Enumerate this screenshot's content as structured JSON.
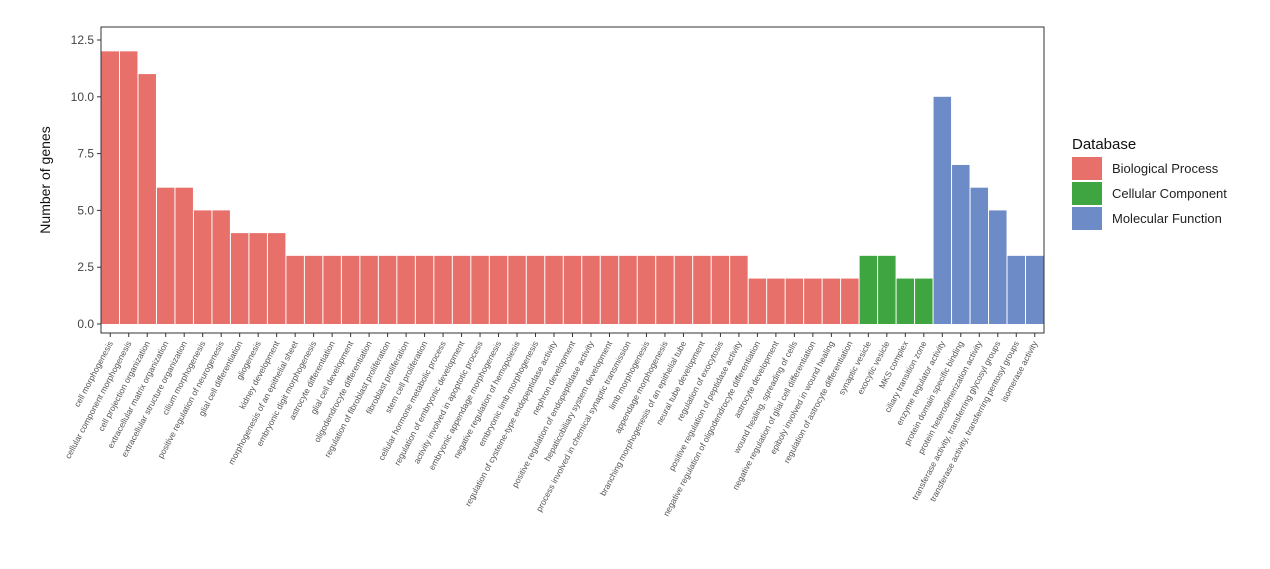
{
  "chart_data": {
    "type": "bar",
    "ylabel": "Number of genes",
    "xlabel": "",
    "ylim": [
      0,
      12.5
    ],
    "yticks": [
      "0.0",
      "2.5",
      "5.0",
      "7.5",
      "10.0",
      "12.5"
    ],
    "legend": {
      "title": "Database",
      "position": "right",
      "entries": [
        {
          "name": "Biological Process",
          "color": "#e8706a"
        },
        {
          "name": "Cellular Component",
          "color": "#3fa540"
        },
        {
          "name": "Molecular Function",
          "color": "#6d8bc6"
        }
      ]
    },
    "categories": [
      "cell morphogenesis",
      "cellular component morphogenesis",
      "cell projection organization",
      "extracellular matrix organization",
      "extracellular structure organization",
      "cilium morphogenesis",
      "positive regulation of neurogenesis",
      "glial cell differentiation",
      "gliogenesis",
      "kidney development",
      "morphogenesis of an epithelial sheet",
      "embryonic digit morphogenesis",
      "astrocyte differentiation",
      "glial cell development",
      "oligodendrocyte differentiation",
      "regulation of fibroblast proliferation",
      "fibroblast proliferation",
      "stem cell proliferation",
      "cellular hormone metabolic process",
      "regulation of embryonic development",
      "activity involved in apoptotic process",
      "embryonic appendage morphogenesis",
      "negative regulation of hemopoiesis",
      "embryonic limb morphogenesis",
      "regulation of cysteine-type endopeptidase activity",
      "nephron development",
      "positive regulation of endopeptidase activity",
      "hepaticobiliary system development",
      "process involved in chemical synaptic transmission",
      "limb morphogenesis",
      "appendage morphogenesis",
      "branching morphogenesis of an epithelial tube",
      "neural tube development",
      "regulation of exocytosis",
      "positive regulation of peptidase activity",
      "negative regulation of oligodendrocyte differentiation",
      "astrocyte development",
      "wound healing, spreading of cells",
      "negative regulation of glial cell differentiation",
      "epiboly involved in wound healing",
      "regulation of astrocyte differentiation",
      "synaptic vesicle",
      "exocytic vesicle",
      "MKS complex",
      "ciliary transition zone",
      "enzyme regulator activity",
      "protein domain specific binding",
      "protein heterodimerization activity",
      "transferase activity, transferring glycosyl groups",
      "transferase activity, transferring pentosyl groups",
      "isomerase activity"
    ],
    "groups": [
      "Biological Process",
      "Biological Process",
      "Biological Process",
      "Biological Process",
      "Biological Process",
      "Biological Process",
      "Biological Process",
      "Biological Process",
      "Biological Process",
      "Biological Process",
      "Biological Process",
      "Biological Process",
      "Biological Process",
      "Biological Process",
      "Biological Process",
      "Biological Process",
      "Biological Process",
      "Biological Process",
      "Biological Process",
      "Biological Process",
      "Biological Process",
      "Biological Process",
      "Biological Process",
      "Biological Process",
      "Biological Process",
      "Biological Process",
      "Biological Process",
      "Biological Process",
      "Biological Process",
      "Biological Process",
      "Biological Process",
      "Biological Process",
      "Biological Process",
      "Biological Process",
      "Biological Process",
      "Biological Process",
      "Biological Process",
      "Biological Process",
      "Biological Process",
      "Biological Process",
      "Biological Process",
      "Cellular Component",
      "Cellular Component",
      "Cellular Component",
      "Cellular Component",
      "Molecular Function",
      "Molecular Function",
      "Molecular Function",
      "Molecular Function",
      "Molecular Function",
      "Molecular Function"
    ],
    "values": [
      12,
      12,
      11,
      6,
      6,
      5,
      5,
      4,
      4,
      4,
      3,
      3,
      3,
      3,
      3,
      3,
      3,
      3,
      3,
      3,
      3,
      3,
      3,
      3,
      3,
      3,
      3,
      3,
      3,
      3,
      3,
      3,
      3,
      3,
      3,
      2,
      2,
      2,
      2,
      2,
      2,
      3,
      3,
      2,
      2,
      10,
      7,
      6,
      5,
      3,
      3
    ]
  }
}
